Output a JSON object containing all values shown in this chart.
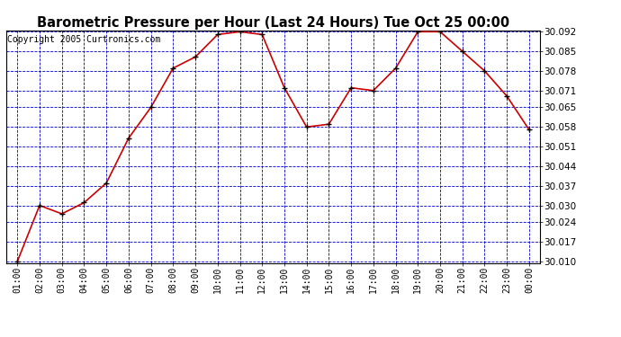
{
  "title": "Barometric Pressure per Hour (Last 24 Hours) Tue Oct 25 00:00",
  "copyright": "Copyright 2005 Curtronics.com",
  "hours": [
    "01:00",
    "02:00",
    "03:00",
    "04:00",
    "05:00",
    "06:00",
    "07:00",
    "08:00",
    "09:00",
    "10:00",
    "11:00",
    "12:00",
    "13:00",
    "14:00",
    "15:00",
    "16:00",
    "17:00",
    "18:00",
    "19:00",
    "20:00",
    "21:00",
    "22:00",
    "23:00",
    "00:00"
  ],
  "values": [
    30.01,
    30.03,
    30.027,
    30.031,
    30.038,
    30.054,
    30.065,
    30.079,
    30.083,
    30.091,
    30.092,
    30.091,
    30.072,
    30.058,
    30.059,
    30.072,
    30.071,
    30.079,
    30.092,
    30.092,
    30.085,
    30.078,
    30.069,
    30.057
  ],
  "ylim_min": 30.01,
  "ylim_max": 30.092,
  "yticks": [
    30.01,
    30.017,
    30.024,
    30.03,
    30.037,
    30.044,
    30.051,
    30.058,
    30.065,
    30.071,
    30.078,
    30.085,
    30.092
  ],
  "line_color": "#cc0000",
  "marker_color": "#000000",
  "bg_color": "#ffffff",
  "grid_color": "#0000cc",
  "title_fontsize": 10.5,
  "copyright_fontsize": 7
}
